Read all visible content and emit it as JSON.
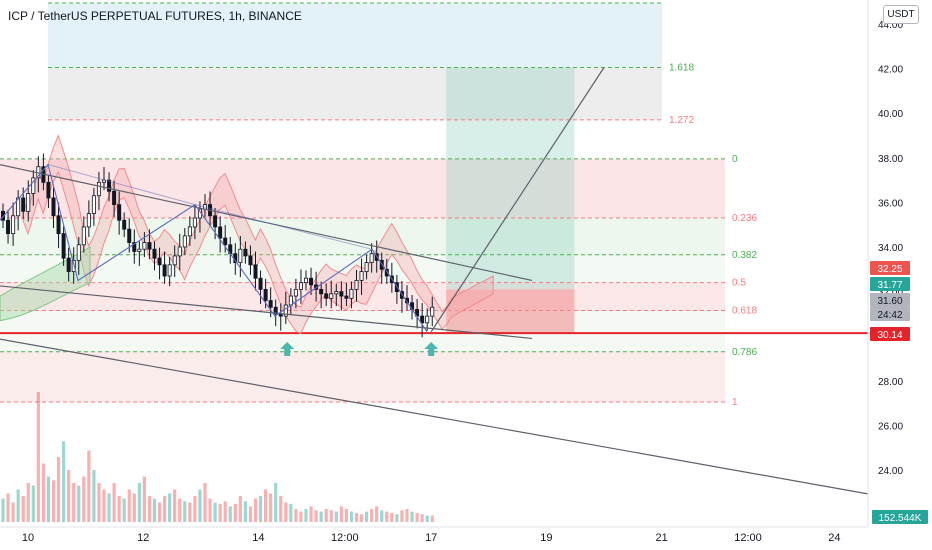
{
  "header": {
    "title": "ICP / TetherUS PERPETUAL FUTURES, 1h, BINANCE",
    "currency_button": "USDT"
  },
  "chart_data": {
    "type": "candlestick",
    "symbol": "ICP / TetherUS PERPETUAL FUTURES",
    "interval": "1h",
    "exchange": "BINANCE",
    "y_axis": {
      "ticks": [
        "44.00",
        "42.00",
        "40.00",
        "38.00",
        "36.00",
        "34.00",
        "32.00",
        "30.00",
        "28.00",
        "26.00",
        "24.00"
      ],
      "ylim": [
        22.5,
        45
      ]
    },
    "x_axis": {
      "ticks": [
        "10",
        "12",
        "14",
        "12:00",
        "17",
        "19",
        "21",
        "12:00",
        "24"
      ]
    },
    "price_tags": [
      {
        "value": "32.25",
        "color": "#ef5350"
      },
      {
        "value": "31.77",
        "color": "#26a69a"
      },
      {
        "value": "31.60",
        "color": "#b2b5be"
      },
      {
        "value": "24:42",
        "color": "#b2b5be"
      },
      {
        "value": "30.14",
        "color": "#e5232a"
      },
      {
        "value": "152.544K",
        "color": "#26a69a"
      }
    ],
    "fib_levels": [
      {
        "label": "1.618",
        "price": 42.05,
        "color": "#4caf50"
      },
      {
        "label": "1.272",
        "price": 39.7,
        "color": "#f77c80"
      },
      {
        "label": "0",
        "price": 37.95,
        "color": "#4caf50"
      },
      {
        "label": "0.236",
        "price": 35.3,
        "color": "#f77c80"
      },
      {
        "label": "0.382",
        "price": 33.65,
        "color": "#4caf50"
      },
      {
        "label": "0.5",
        "price": 32.4,
        "color": "#f77c80"
      },
      {
        "label": "0.618",
        "price": 31.15,
        "color": "#f77c80"
      },
      {
        "label": "0.786",
        "price": 29.3,
        "color": "#4caf50"
      },
      {
        "label": "1",
        "price": 27.05,
        "color": "#f77c80"
      }
    ],
    "support_line": {
      "price": 30.14,
      "color": "#e5232a"
    },
    "position": {
      "target": 42.05,
      "entry": 32.1,
      "stop": 30.14
    },
    "candles_close": [
      35.2,
      34.6,
      35.4,
      36.2,
      35.6,
      36.4,
      37.1,
      37.6,
      36.9,
      36.2,
      35.4,
      34.6,
      33.5,
      32.9,
      33.4,
      34.1,
      34.9,
      35.5,
      36.3,
      36.9,
      37.0,
      36.5,
      35.9,
      35.2,
      34.8,
      34.2,
      33.8,
      33.9,
      34.2,
      33.9,
      33.5,
      33.2,
      32.7,
      33.2,
      33.6,
      34.0,
      34.5,
      34.9,
      35.3,
      35.7,
      35.9,
      35.4,
      34.9,
      34.4,
      34.1,
      33.7,
      33.3,
      33.9,
      33.6,
      33.2,
      32.6,
      32.1,
      31.6,
      31.3,
      31.0,
      30.9,
      31.4,
      31.8,
      32.1,
      32.4,
      32.6,
      32.3,
      32.1,
      31.9,
      31.7,
      31.9,
      32.0,
      31.8,
      31.7,
      32.1,
      32.5,
      32.9,
      33.3,
      33.7,
      33.4,
      33.0,
      32.7,
      32.4,
      32.0,
      31.7,
      31.5,
      31.2,
      30.9,
      30.6,
      30.9,
      31.3
    ],
    "volumes": [
      0.18,
      0.22,
      0.15,
      0.25,
      0.2,
      0.3,
      0.28,
      1.0,
      0.45,
      0.35,
      0.32,
      0.5,
      0.62,
      0.4,
      0.3,
      0.28,
      0.35,
      0.55,
      0.4,
      0.3,
      0.25,
      0.22,
      0.3,
      0.2,
      0.18,
      0.25,
      0.22,
      0.3,
      0.35,
      0.2,
      0.18,
      0.15,
      0.2,
      0.22,
      0.25,
      0.18,
      0.16,
      0.15,
      0.2,
      0.25,
      0.3,
      0.18,
      0.15,
      0.14,
      0.16,
      0.12,
      0.14,
      0.2,
      0.16,
      0.12,
      0.18,
      0.2,
      0.25,
      0.22,
      0.3,
      0.2,
      0.15,
      0.14,
      0.1,
      0.08,
      0.1,
      0.12,
      0.09,
      0.08,
      0.1,
      0.09,
      0.08,
      0.12,
      0.1,
      0.08,
      0.07,
      0.06,
      0.08,
      0.1,
      0.12,
      0.09,
      0.08,
      0.07,
      0.06,
      0.09,
      0.1,
      0.08,
      0.07,
      0.06,
      0.05,
      0.05
    ],
    "volume_max": "152.544K",
    "trendlines": [
      {
        "name": "upper-channel",
        "from": {
          "time": "9 12:00",
          "price": 37.7
        },
        "to": {
          "time": "18 18:00",
          "price": 32.5
        }
      },
      {
        "name": "lower-channel",
        "from": {
          "time": "9 08:00",
          "price": 32.3
        },
        "to": {
          "time": "18 18:00",
          "price": 29.9
        }
      },
      {
        "name": "far-channel",
        "from": {
          "time": "9 08:00",
          "price": 29.95
        },
        "to": {
          "time": "24 18:00",
          "price": 22.85
        }
      },
      {
        "name": "projection",
        "from": {
          "time": "17 00:00",
          "price": 30.2
        },
        "to": {
          "time": "20 00:00",
          "price": 42.05
        }
      }
    ],
    "markers": [
      {
        "type": "arrow-up",
        "time": "14 12:00",
        "color": "#4db6ac"
      },
      {
        "type": "arrow-up",
        "time": "17 00:00",
        "color": "#4db6ac"
      }
    ]
  }
}
